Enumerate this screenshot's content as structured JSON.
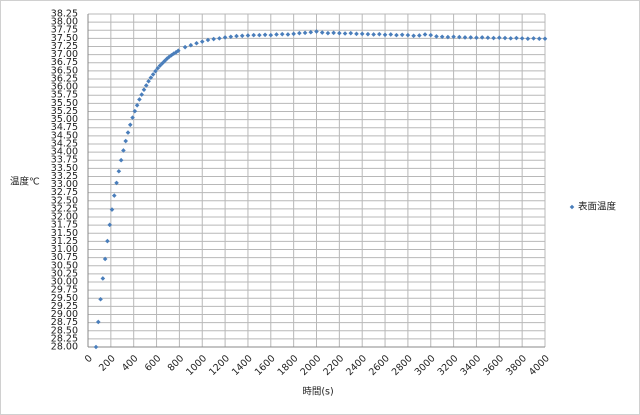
{
  "chart_data": {
    "type": "scatter",
    "x_label": "時間(s)",
    "y_label": "温度℃",
    "x": [
      70,
      90,
      110,
      130,
      150,
      170,
      190,
      210,
      230,
      250,
      270,
      290,
      310,
      330,
      350,
      370,
      390,
      410,
      430,
      450,
      470,
      490,
      510,
      530,
      550,
      570,
      590,
      610,
      630,
      650,
      670,
      690,
      710,
      730,
      750,
      770,
      790,
      850,
      900,
      950,
      1000,
      1050,
      1100,
      1150,
      1200,
      1250,
      1300,
      1350,
      1400,
      1450,
      1500,
      1550,
      1600,
      1650,
      1700,
      1750,
      1800,
      1850,
      1900,
      1950,
      2000,
      2050,
      2100,
      2150,
      2200,
      2250,
      2300,
      2350,
      2400,
      2450,
      2500,
      2550,
      2600,
      2650,
      2700,
      2750,
      2800,
      2850,
      2900,
      2950,
      3000,
      3050,
      3100,
      3150,
      3200,
      3250,
      3300,
      3350,
      3400,
      3450,
      3500,
      3550,
      3600,
      3650,
      3700,
      3750,
      3800,
      3850,
      3900,
      3950,
      4000
    ],
    "series": [
      {
        "name": "表面温度",
        "color": "#4a7ebb",
        "values": [
          28.0,
          28.77,
          29.47,
          30.11,
          30.71,
          31.26,
          31.76,
          32.23,
          32.66,
          33.05,
          33.41,
          33.75,
          34.05,
          34.34,
          34.6,
          34.84,
          35.06,
          35.26,
          35.44,
          35.62,
          35.77,
          35.92,
          36.05,
          36.18,
          36.29,
          36.39,
          36.49,
          36.58,
          36.66,
          36.73,
          36.8,
          36.87,
          36.93,
          36.98,
          37.03,
          37.07,
          37.12,
          37.23,
          37.29,
          37.35,
          37.4,
          37.45,
          37.48,
          37.5,
          37.53,
          37.55,
          37.57,
          37.58,
          37.59,
          37.6,
          37.6,
          37.61,
          37.6,
          37.62,
          37.63,
          37.62,
          37.64,
          37.66,
          37.67,
          37.69,
          37.71,
          37.68,
          37.66,
          37.67,
          37.66,
          37.65,
          37.66,
          37.64,
          37.64,
          37.63,
          37.62,
          37.63,
          37.61,
          37.62,
          37.6,
          37.61,
          37.6,
          37.58,
          37.59,
          37.62,
          37.6,
          37.56,
          37.55,
          37.54,
          37.55,
          37.54,
          37.53,
          37.53,
          37.52,
          37.53,
          37.52,
          37.51,
          37.52,
          37.51,
          37.5,
          37.51,
          37.5,
          37.49,
          37.5,
          37.49,
          37.49
        ]
      }
    ],
    "xlim": [
      0,
      4000
    ],
    "xticks": [
      0,
      200,
      400,
      600,
      800,
      1000,
      1200,
      1400,
      1600,
      1800,
      2000,
      2200,
      2400,
      2600,
      2800,
      3000,
      3200,
      3400,
      3600,
      3800,
      4000
    ],
    "ylim": [
      28,
      38.25
    ],
    "yticks": [
      {
        "value": 28,
        "label": "28.00"
      },
      {
        "value": 28.25,
        "label": "28.25"
      },
      {
        "value": 28.5,
        "label": "28.50"
      },
      {
        "value": 28.75,
        "label": "28.75"
      },
      {
        "value": 29,
        "label": "29.00"
      },
      {
        "value": 29.25,
        "label": "29.25"
      },
      {
        "value": 29.5,
        "label": "29.50"
      },
      {
        "value": 29.75,
        "label": "29.75"
      },
      {
        "value": 30,
        "label": "30.00"
      },
      {
        "value": 30.25,
        "label": "30.25"
      },
      {
        "value": 30.5,
        "label": "30.50"
      },
      {
        "value": 30.75,
        "label": "30.75"
      },
      {
        "value": 31,
        "label": "31.00"
      },
      {
        "value": 31.25,
        "label": "31.25"
      },
      {
        "value": 31.5,
        "label": "31.50"
      },
      {
        "value": 31.75,
        "label": "31.75"
      },
      {
        "value": 32,
        "label": "32.00"
      },
      {
        "value": 32.25,
        "label": "32.25"
      },
      {
        "value": 32.5,
        "label": "32.50"
      },
      {
        "value": 32.75,
        "label": "32.75"
      },
      {
        "value": 33,
        "label": "33.00"
      },
      {
        "value": 33.25,
        "label": "33.25"
      },
      {
        "value": 33.5,
        "label": "33.50"
      },
      {
        "value": 33.75,
        "label": "33.75"
      },
      {
        "value": 34,
        "label": "34.00"
      },
      {
        "value": 34.25,
        "label": "34.25"
      },
      {
        "value": 34.5,
        "label": "34.50"
      },
      {
        "value": 34.75,
        "label": "34.75"
      },
      {
        "value": 35,
        "label": "35.00"
      },
      {
        "value": 35.25,
        "label": "35.25"
      },
      {
        "value": 35.5,
        "label": "35.50"
      },
      {
        "value": 35.75,
        "label": "35.75"
      },
      {
        "value": 36,
        "label": "36.00"
      },
      {
        "value": 36.25,
        "label": "36.25"
      },
      {
        "value": 36.5,
        "label": "36.50"
      },
      {
        "value": 36.75,
        "label": "36.75"
      },
      {
        "value": 37,
        "label": "37.00"
      },
      {
        "value": 37.25,
        "label": "37.25"
      },
      {
        "value": 37.5,
        "label": "37.50"
      },
      {
        "value": 37.75,
        "label": "37.75"
      },
      {
        "value": 38,
        "label": "38.00"
      },
      {
        "value": 38.25,
        "label": "38.25"
      }
    ],
    "grid": true,
    "legend": "right"
  }
}
